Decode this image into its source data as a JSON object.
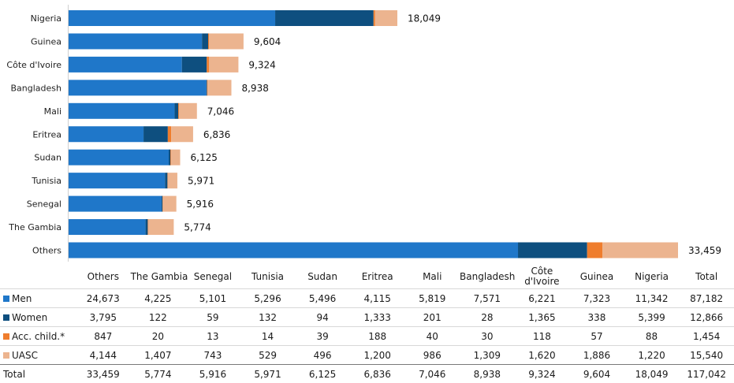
{
  "chart_data": {
    "type": "bar",
    "orientation": "horizontal",
    "stacked": true,
    "categories": [
      "Nigeria",
      "Guinea",
      "Côte d'Ivoire",
      "Bangladesh",
      "Mali",
      "Eritrea",
      "Sudan",
      "Tunisia",
      "Senegal",
      "The Gambia",
      "Others"
    ],
    "series": [
      {
        "name": "Men",
        "color": "#1f77c9",
        "values": [
          11342,
          7323,
          6221,
          7571,
          5819,
          4115,
          5496,
          5296,
          5101,
          4225,
          24673
        ]
      },
      {
        "name": "Women",
        "color": "#0e4f7f",
        "values": [
          5399,
          338,
          1365,
          28,
          201,
          1333,
          94,
          132,
          59,
          122,
          3795
        ]
      },
      {
        "name": "Acc. child.*",
        "color": "#ef7d2d",
        "values": [
          88,
          57,
          118,
          30,
          40,
          188,
          39,
          14,
          13,
          20,
          847
        ]
      },
      {
        "name": "UASC",
        "color": "#ecb48f",
        "values": [
          1220,
          1886,
          1620,
          1309,
          986,
          1200,
          496,
          529,
          743,
          1407,
          4144
        ]
      }
    ],
    "totals": [
      "18,049",
      "9,604",
      "9,324",
      "8,938",
      "7,046",
      "6,836",
      "6,125",
      "5,971",
      "5,916",
      "5,774",
      "33,459"
    ],
    "xlim": [
      0,
      33459
    ],
    "grid": false,
    "legend": "in data table"
  },
  "table": {
    "columns": [
      "Others",
      "The Gambia",
      "Senegal",
      "Tunisia",
      "Sudan",
      "Eritrea",
      "Mali",
      "Bangladesh",
      "Côte d'Ivoire",
      "Guinea",
      "Nigeria",
      "Total"
    ],
    "rows": [
      {
        "label": "Men",
        "color": "#1f77c9",
        "cells": [
          "24,673",
          "4,225",
          "5,101",
          "5,296",
          "5,496",
          "4,115",
          "5,819",
          "7,571",
          "6,221",
          "7,323",
          "11,342",
          "87,182"
        ]
      },
      {
        "label": "Women",
        "color": "#0e4f7f",
        "cells": [
          "3,795",
          "122",
          "59",
          "132",
          "94",
          "1,333",
          "201",
          "28",
          "1,365",
          "338",
          "5,399",
          "12,866"
        ]
      },
      {
        "label": "Acc. child.*",
        "color": "#ef7d2d",
        "cells": [
          "847",
          "20",
          "13",
          "14",
          "39",
          "188",
          "40",
          "30",
          "118",
          "57",
          "88",
          "1,454"
        ]
      },
      {
        "label": "UASC",
        "color": "#ecb48f",
        "cells": [
          "4,144",
          "1,407",
          "743",
          "529",
          "496",
          "1,200",
          "986",
          "1,309",
          "1,620",
          "1,886",
          "1,220",
          "15,540"
        ]
      },
      {
        "label": "Total",
        "color": "",
        "cells": [
          "33,459",
          "5,774",
          "5,916",
          "5,971",
          "6,125",
          "6,836",
          "7,046",
          "8,938",
          "9,324",
          "9,604",
          "18,049",
          "117,042"
        ]
      }
    ]
  }
}
